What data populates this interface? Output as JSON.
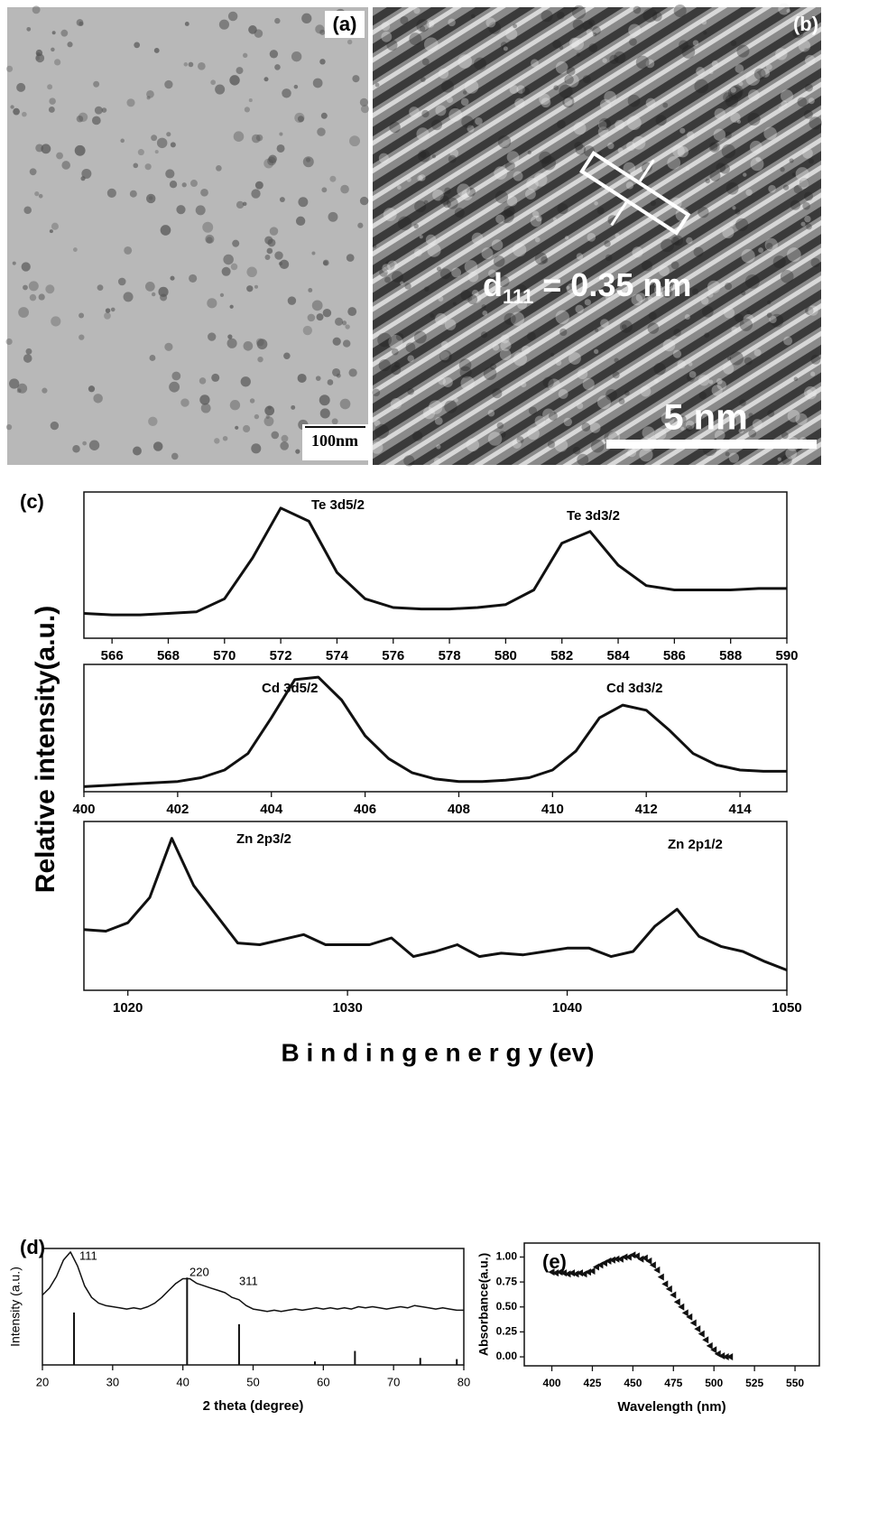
{
  "images": [
    {
      "label": "(a)",
      "scale_bar": "100nm"
    },
    {
      "label": "(b)",
      "annotation": {
        "text": "d",
        "subscript": "111",
        "rest": " = 0.35 nm"
      },
      "scale_bar": "5 nm"
    }
  ],
  "xps": {
    "label": "(c)",
    "ylabel": "Relative intensity(a.u.)",
    "xlabel": "B i n d i n g e n e r g y (ev)"
  },
  "chart_data": [
    {
      "type": "line",
      "color": "#111111",
      "annotations": [
        "Te 3d5/2",
        "Te 3d3/2"
      ],
      "x": [
        565,
        566,
        567,
        568,
        569,
        570,
        571,
        572,
        573,
        574,
        575,
        576,
        577,
        578,
        579,
        580,
        581,
        582,
        583,
        584,
        585,
        586,
        587,
        588,
        589,
        590
      ],
      "values": [
        17,
        16,
        16,
        17,
        18,
        27,
        55,
        89,
        80,
        45,
        27,
        21,
        20,
        20,
        21,
        23,
        33,
        65,
        73,
        50,
        36,
        33,
        33,
        33,
        34,
        34
      ],
      "xlim": [
        565,
        590
      ],
      "xticks": [
        566,
        568,
        570,
        572,
        574,
        576,
        578,
        580,
        582,
        584,
        586,
        588,
        590
      ],
      "ylim": [
        0,
        100
      ]
    },
    {
      "type": "line",
      "color": "#111111",
      "annotations": [
        "Cd 3d5/2",
        "Cd 3d3/2"
      ],
      "x": [
        400,
        400.5,
        401,
        401.5,
        402,
        402.5,
        403,
        403.5,
        404,
        404.5,
        405,
        405.5,
        406,
        406.5,
        407,
        407.5,
        408,
        408.5,
        409,
        409.5,
        410,
        410.5,
        411,
        411.5,
        412,
        412.5,
        413,
        413.5,
        414,
        414.5,
        415
      ],
      "values": [
        4,
        5,
        6,
        7,
        8,
        11,
        17,
        30,
        58,
        88,
        90,
        72,
        44,
        26,
        15,
        10,
        8,
        8,
        9,
        11,
        17,
        32,
        58,
        68,
        64,
        48,
        30,
        21,
        17,
        16,
        16
      ],
      "xlim": [
        400,
        415
      ],
      "xticks": [
        400,
        402,
        404,
        406,
        408,
        410,
        412,
        414
      ],
      "ylim": [
        0,
        100
      ]
    },
    {
      "type": "line",
      "color": "#111111",
      "annotations": [
        "Zn 2p3/2",
        "Zn 2p1/2"
      ],
      "x": [
        1018,
        1019,
        1020,
        1021,
        1022,
        1023,
        1024,
        1025,
        1026,
        1027,
        1028,
        1029,
        1030,
        1031,
        1032,
        1033,
        1034,
        1035,
        1036,
        1037,
        1038,
        1039,
        1040,
        1041,
        1042,
        1043,
        1044,
        1045,
        1046,
        1047,
        1048,
        1049,
        1050
      ],
      "values": [
        36,
        35,
        40,
        55,
        90,
        62,
        45,
        28,
        27,
        30,
        33,
        27,
        27,
        27,
        31,
        20,
        23,
        27,
        20,
        22,
        21,
        23,
        25,
        25,
        20,
        23,
        38,
        48,
        32,
        26,
        23,
        17,
        12
      ],
      "xlim": [
        1018,
        1050
      ],
      "xticks": [
        1020,
        1030,
        1040,
        1050
      ],
      "ylim": [
        0,
        100
      ]
    },
    {
      "type": "line",
      "title": "(d)",
      "color": "#111111",
      "xlabel": "2 theta (degree)",
      "ylabel": "Intensity (a.u.)",
      "annotations": [
        "111",
        "220",
        "311"
      ],
      "x": [
        20,
        21,
        22,
        23,
        24,
        25,
        26,
        27,
        28,
        29,
        30,
        31,
        32,
        33,
        34,
        35,
        36,
        37,
        38,
        39,
        40,
        41,
        42,
        43,
        44,
        45,
        46,
        47,
        48,
        49,
        50,
        51,
        52,
        53,
        54,
        55,
        56,
        57,
        58,
        59,
        60,
        61,
        62,
        63,
        64,
        65,
        66,
        67,
        68,
        69,
        70,
        71,
        72,
        73,
        74,
        75,
        76,
        77,
        78,
        79,
        80
      ],
      "values": [
        60,
        66,
        76,
        90,
        97,
        85,
        68,
        58,
        53,
        51,
        50,
        49,
        48,
        49,
        48,
        50,
        53,
        58,
        64,
        70,
        74,
        74,
        70,
        68,
        66,
        64,
        62,
        58,
        56,
        51,
        48,
        47,
        46,
        47,
        46,
        47,
        48,
        47,
        48,
        49,
        48,
        49,
        48,
        49,
        48,
        50,
        49,
        50,
        49,
        48,
        49,
        50,
        49,
        51,
        50,
        49,
        48,
        49,
        48,
        47,
        47
      ],
      "sticks": {
        "x": [
          24.5,
          40.6,
          48,
          58.8,
          64.5,
          73.8,
          79
        ],
        "values": [
          45,
          75,
          35,
          3,
          12,
          6,
          5
        ]
      },
      "xlim": [
        20,
        80
      ],
      "xticks": [
        20,
        30,
        40,
        50,
        60,
        70,
        80
      ],
      "ylim": [
        0,
        100
      ]
    },
    {
      "type": "scatter",
      "title": "(e)",
      "color": "#111111",
      "xlabel": "Wavelength (nm)",
      "ylabel": "Absorbance(a.u.)",
      "x": [
        400,
        402.5,
        405,
        407.5,
        410,
        412.5,
        415,
        417.5,
        420,
        422.5,
        425,
        427.5,
        430,
        432.5,
        435,
        437.5,
        440,
        442.5,
        445,
        447.5,
        450,
        452.5,
        455,
        457.5,
        460,
        462.5,
        465,
        467.5,
        470,
        472.5,
        475,
        477.5,
        480,
        482.5,
        485,
        487.5,
        490,
        492.5,
        495,
        497.5,
        500,
        502.5,
        505,
        507.5,
        510
      ],
      "values": [
        0.85,
        0.84,
        0.85,
        0.84,
        0.83,
        0.84,
        0.83,
        0.84,
        0.83,
        0.85,
        0.86,
        0.9,
        0.92,
        0.94,
        0.96,
        0.97,
        0.98,
        0.98,
        1.0,
        1.0,
        1.02,
        1.01,
        0.98,
        0.99,
        0.96,
        0.92,
        0.87,
        0.8,
        0.73,
        0.68,
        0.62,
        0.55,
        0.5,
        0.44,
        0.4,
        0.34,
        0.28,
        0.23,
        0.17,
        0.11,
        0.07,
        0.03,
        0.01,
        0.0,
        0.0
      ],
      "xlim": [
        383,
        565
      ],
      "xticks": [
        400,
        425,
        450,
        475,
        500,
        525,
        550
      ],
      "ylim": [
        -0.09,
        1.14
      ],
      "yticks": [
        {
          "value": 0,
          "label": "0.00"
        },
        {
          "value": 0.25,
          "label": "0.25"
        },
        {
          "value": 0.5,
          "label": "0.50"
        },
        {
          "value": 0.75,
          "label": "0.75"
        },
        {
          "value": 1,
          "label": "1.00"
        }
      ]
    }
  ]
}
